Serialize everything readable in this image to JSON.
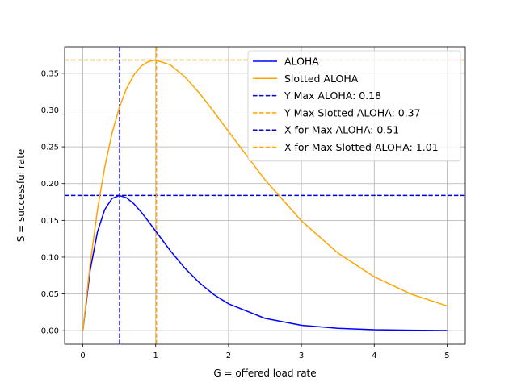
{
  "chart_data": {
    "type": "line",
    "title": "",
    "xlabel": "G = offered load rate",
    "ylabel": "S = successful rate",
    "xlim": [
      -0.25,
      5.25
    ],
    "ylim": [
      -0.0184,
      0.386
    ],
    "xticks": [
      0,
      1,
      2,
      3,
      4,
      5
    ],
    "xtick_labels": [
      "0",
      "1",
      "2",
      "3",
      "4",
      "5"
    ],
    "yticks": [
      0.0,
      0.05,
      0.1,
      0.15,
      0.2,
      0.25,
      0.3,
      0.35
    ],
    "ytick_labels": [
      "0.00",
      "0.05",
      "0.10",
      "0.15",
      "0.20",
      "0.25",
      "0.30",
      "0.35"
    ],
    "grid": true,
    "legend": "top-right",
    "series": [
      {
        "name": "ALOHA",
        "color": "#0000ff",
        "style": "solid",
        "x": [
          0,
          0.1,
          0.2,
          0.3,
          0.4,
          0.5,
          0.6,
          0.7,
          0.8,
          0.9,
          1.0,
          1.2,
          1.4,
          1.6,
          1.8,
          2.0,
          2.5,
          3.0,
          3.5,
          4.0,
          4.5,
          5.0
        ],
        "y": [
          0,
          0.0819,
          0.134,
          0.1646,
          0.1797,
          0.1839,
          0.1807,
          0.1726,
          0.1615,
          0.1487,
          0.1353,
          0.1089,
          0.0851,
          0.0652,
          0.049,
          0.0366,
          0.0168,
          0.0074,
          0.0032,
          0.0013,
          0.0006,
          0.0002
        ]
      },
      {
        "name": "Slotted ALOHA",
        "color": "#ffa500",
        "style": "solid",
        "x": [
          0,
          0.1,
          0.2,
          0.3,
          0.4,
          0.5,
          0.6,
          0.7,
          0.8,
          0.9,
          1.0,
          1.2,
          1.4,
          1.6,
          1.8,
          2.0,
          2.5,
          3.0,
          3.5,
          4.0,
          4.5,
          5.0
        ],
        "y": [
          0,
          0.0905,
          0.1637,
          0.2222,
          0.2681,
          0.3033,
          0.3293,
          0.3476,
          0.3595,
          0.3659,
          0.3679,
          0.3614,
          0.3452,
          0.323,
          0.2975,
          0.2707,
          0.2052,
          0.1494,
          0.1057,
          0.0733,
          0.05,
          0.0337
        ]
      }
    ],
    "reference_lines": [
      {
        "name": "Y Max ALOHA: 0.18",
        "orientation": "horizontal",
        "value": 0.1839,
        "color": "#0000cc"
      },
      {
        "name": "Y Max Slotted ALOHA: 0.37",
        "orientation": "horizontal",
        "value": 0.3679,
        "color": "#ffa500"
      },
      {
        "name": "X for Max ALOHA: 0.51",
        "orientation": "vertical",
        "value": 0.505,
        "color": "#0000cc"
      },
      {
        "name": "X for Max Slotted ALOHA: 1.01",
        "orientation": "vertical",
        "value": 1.01,
        "color": "#ffa500"
      }
    ]
  }
}
